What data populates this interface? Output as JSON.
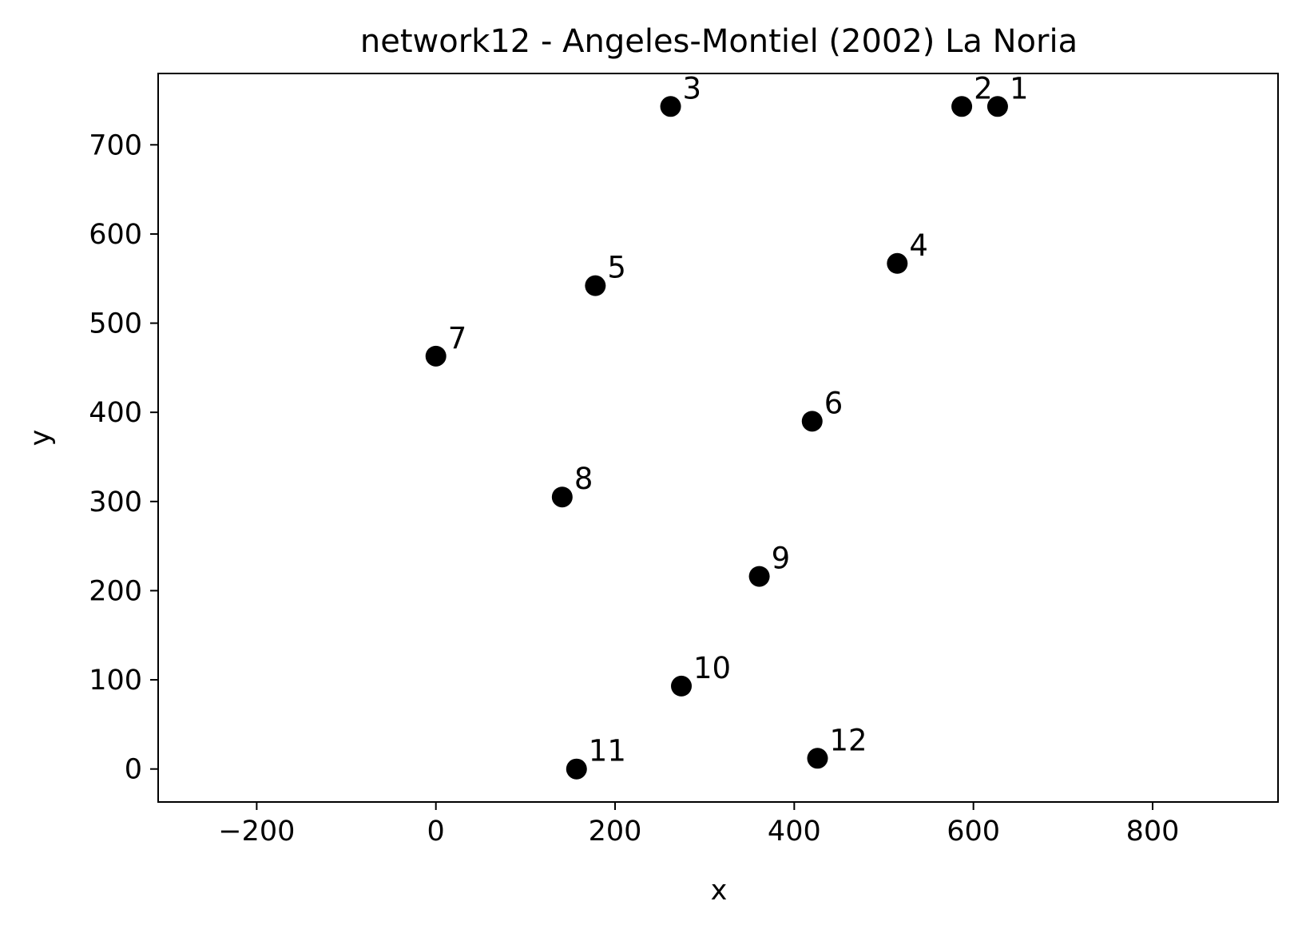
{
  "chart_data": {
    "type": "scatter",
    "title": "network12 - Angeles-Montiel (2002) La Noria",
    "xlabel": "x",
    "ylabel": "y",
    "xlim": [
      -310,
      940
    ],
    "ylim": [
      -37,
      780
    ],
    "xticks": [
      -200,
      0,
      200,
      400,
      600,
      800
    ],
    "xtick_labels": [
      "−200",
      "0",
      "200",
      "400",
      "600",
      "800"
    ],
    "yticks": [
      0,
      100,
      200,
      300,
      400,
      500,
      600,
      700
    ],
    "ytick_labels": [
      "0",
      "100",
      "200",
      "300",
      "400",
      "500",
      "600",
      "700"
    ],
    "grid": false,
    "point_color": "#000000",
    "points": [
      {
        "label": "1",
        "x": 627,
        "y": 743
      },
      {
        "label": "2",
        "x": 587,
        "y": 743
      },
      {
        "label": "3",
        "x": 262,
        "y": 743
      },
      {
        "label": "4",
        "x": 515,
        "y": 567
      },
      {
        "label": "5",
        "x": 178,
        "y": 542
      },
      {
        "label": "6",
        "x": 420,
        "y": 390
      },
      {
        "label": "7",
        "x": 0,
        "y": 463
      },
      {
        "label": "8",
        "x": 141,
        "y": 305
      },
      {
        "label": "9",
        "x": 361,
        "y": 216
      },
      {
        "label": "10",
        "x": 274,
        "y": 93
      },
      {
        "label": "11",
        "x": 157,
        "y": 0
      },
      {
        "label": "12",
        "x": 426,
        "y": 12
      }
    ]
  }
}
